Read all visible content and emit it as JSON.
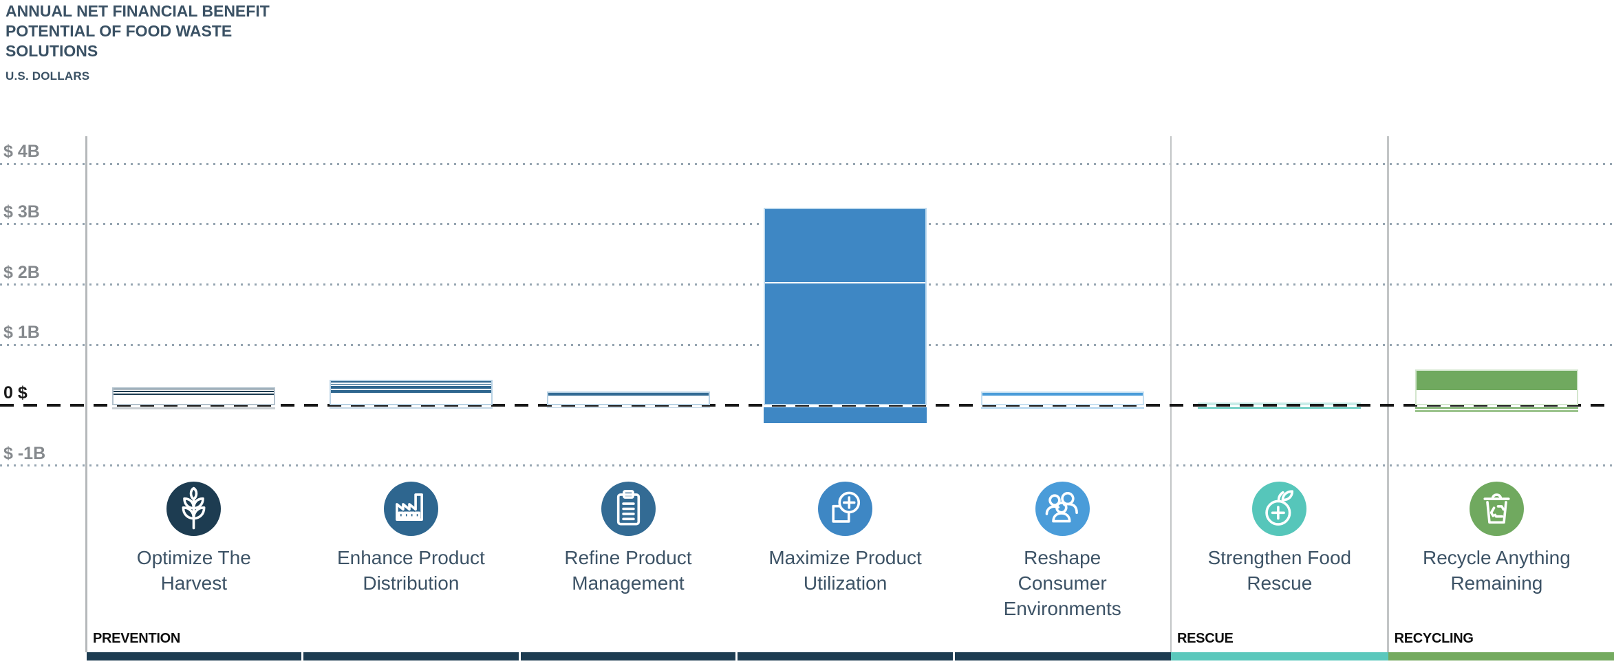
{
  "header": {
    "title_lines": [
      "ANNUAL NET FINANCIAL BENEFIT",
      "POTENTIAL OF FOOD WASTE",
      "SOLUTIONS"
    ],
    "subtitle": "U.S. DOLLARS"
  },
  "chart_data": {
    "type": "bar",
    "title": "ANNUAL NET FINANCIAL BENEFIT POTENTIAL OF FOOD WASTE SOLUTIONS",
    "ylabel": "U.S. DOLLARS",
    "unit_note": "stacked bar values in billions of U.S. dollars, estimated from axis gridlines",
    "ylim": [
      -1.4,
      4.4
    ],
    "grid": "horizontal dotted lines at $1B intervals",
    "zero_line": "dashed black line at $0",
    "legend_position": "none",
    "yticks": [
      {
        "label": "$ 4B",
        "value": 4
      },
      {
        "label": "$ 3B",
        "value": 3
      },
      {
        "label": "$ 2B",
        "value": 2
      },
      {
        "label": "$ 1B",
        "value": 1
      },
      {
        "label": "0 $",
        "value": 0
      },
      {
        "label": "$ -1B",
        "value": -1
      }
    ],
    "solutions": [
      {
        "name": "Optimize The Harvest",
        "label_lines": [
          "Optimize The",
          "Harvest"
        ],
        "icon": "wheat-icon",
        "group": "PREVENTION",
        "color": "#1d3c51",
        "edge": "#b3c2cd",
        "segments_above": [
          0.07,
          0.09,
          0.14
        ],
        "segments_below": [
          {
            "value": 0.04,
            "color": "#c9ced2"
          }
        ],
        "approx_total_above": 0.3
      },
      {
        "name": "Enhance Product Distribution",
        "label_lines": [
          "Enhance Product",
          "Distribution"
        ],
        "icon": "factory-icon",
        "group": "PREVENTION",
        "color": "#2e668f",
        "edge": "#b9d2e4",
        "segments_above": [
          0.05,
          0.06,
          0.15,
          0.16
        ],
        "segments_below": [
          {
            "value": 0.03,
            "color": "#c3d6e5"
          }
        ],
        "approx_total_above": 0.42
      },
      {
        "name": "Refine Product Management",
        "label_lines": [
          "Refine Product",
          "Management"
        ],
        "icon": "clipboard-icon",
        "group": "PREVENTION",
        "color": "#336b94",
        "edge": "#b9d2e4",
        "segments_above": [
          0.23
        ],
        "segments_below": [
          {
            "value": 0.02,
            "color": "#c3d6e5"
          }
        ],
        "approx_total_above": 0.23
      },
      {
        "name": "Maximize Product Utilization",
        "label_lines": [
          "Maximize Product",
          "Utilization"
        ],
        "icon": "box-plus-icon",
        "group": "PREVENTION",
        "color": "#3e87c4",
        "edge": "#bfdaee",
        "segments_above": [
          1.23,
          2.04
        ],
        "segments_below": [
          {
            "value": 0.27,
            "color": "#3e87c4"
          }
        ],
        "approx_total_above": 3.27
      },
      {
        "name": "Reshape Consumer Environments",
        "label_lines": [
          "Reshape",
          "Consumer",
          "Environments"
        ],
        "icon": "people-icon",
        "group": "PREVENTION",
        "color": "#4a9cd9",
        "edge": "#c6e0f2",
        "segments_above": [
          0.23
        ],
        "segments_below": [
          {
            "value": 0.03,
            "color": "#aed3ee"
          }
        ],
        "approx_total_above": 0.23
      },
      {
        "name": "Strengthen Food Rescue",
        "label_lines": [
          "Strengthen Food",
          "Rescue"
        ],
        "icon": "fruit-icon",
        "group": "RESCUE",
        "color": "#56c6ba",
        "edge": "#c9ece8",
        "segments_above": [
          0.03
        ],
        "segments_below": [
          {
            "value": 0.03,
            "color": "#56c6ba"
          }
        ],
        "approx_total_above": 0.03
      },
      {
        "name": "Recycle Anything Remaining",
        "label_lines": [
          "Recycle Anything",
          "Remaining"
        ],
        "icon": "recycle-bin-icon",
        "group": "RECYCLING",
        "color": "#70a95f",
        "edge": "#d3e6cd",
        "segments_above": [
          0.59
        ],
        "segments_below": [
          {
            "value": 0.03,
            "color": "#70a95f"
          },
          {
            "value": 0.035,
            "color": "#9cc48e"
          }
        ],
        "approx_total_above": 0.59
      }
    ],
    "groups": [
      {
        "label": "PREVENTION",
        "color": "#1d3c51",
        "column_span": [
          0,
          4
        ]
      },
      {
        "label": "RESCUE",
        "color": "#5bc8bc",
        "column_span": [
          5,
          5
        ]
      },
      {
        "label": "RECYCLING",
        "color": "#74aa5f",
        "column_span": [
          6,
          6
        ]
      }
    ]
  }
}
